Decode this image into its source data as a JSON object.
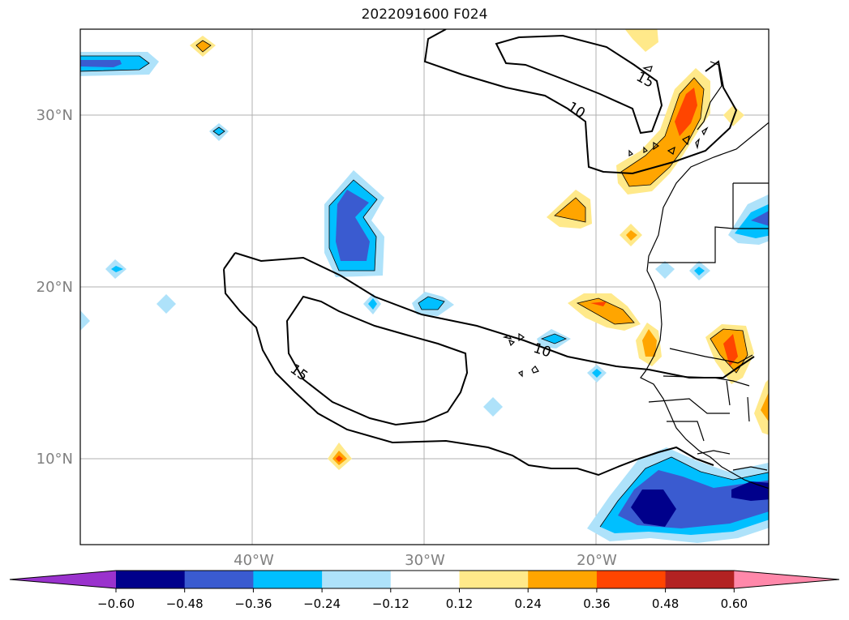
{
  "title": "2022091600 F024",
  "map": {
    "lat_labels": [
      "30°N",
      "20°N",
      "10°N"
    ],
    "lon_labels": [
      "40°W",
      "30°W",
      "20°W"
    ],
    "contour_labels": [
      "15",
      "10",
      "15",
      "10"
    ],
    "extent": {
      "lon_min": -50,
      "lon_max": -10,
      "lat_min": 5,
      "lat_max": 35
    },
    "gridlines": true
  },
  "colorbar": {
    "tick_labels": [
      "−0.60",
      "−0.48",
      "−0.36",
      "−0.24",
      "−0.12",
      "0.12",
      "0.24",
      "0.36",
      "0.48",
      "0.60"
    ],
    "colors": [
      "#9a32cd",
      "#00008b",
      "#3a5bd0",
      "#00bfff",
      "#aee2fa",
      "#ffffff",
      "#ffe98a",
      "#ffa500",
      "#ff4500",
      "#b22222",
      "#ff88aa"
    ]
  },
  "palette": {
    "c1": "#aee2fa",
    "c2": "#00bfff",
    "c3": "#3a5bd0",
    "c4": "#00008b",
    "w1": "#ffe98a",
    "w2": "#ffa500",
    "w3": "#ff4500"
  }
}
